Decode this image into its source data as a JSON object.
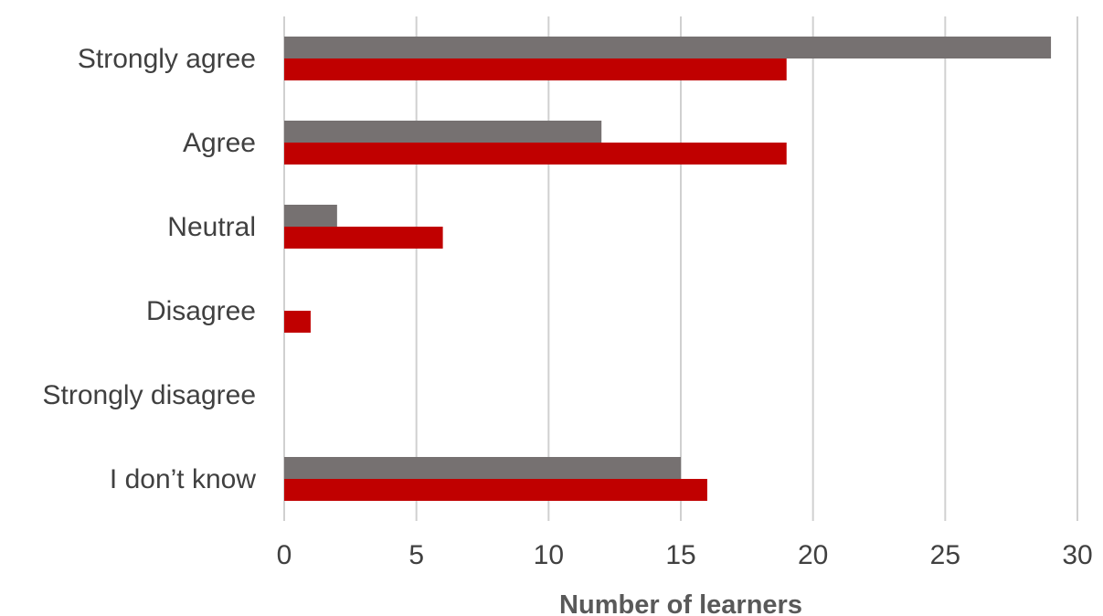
{
  "chart_data": {
    "type": "bar",
    "orientation": "horizontal",
    "categories": [
      "Strongly agree",
      "Agree",
      "Neutral",
      "Disagree",
      "Strongly disagree",
      "I don’t know"
    ],
    "series": [
      {
        "values": [
          29,
          12,
          2,
          0,
          0,
          15
        ],
        "color": "#767171"
      },
      {
        "values": [
          19,
          19,
          6,
          1,
          0,
          16
        ],
        "color": "#c00000"
      }
    ],
    "xlabel": "Number of learners",
    "ylabel": "",
    "xlim": [
      0,
      30
    ],
    "xticks": [
      "0",
      "5",
      "10",
      "15",
      "20",
      "25",
      "30"
    ],
    "grid": "vertical",
    "legend": "none"
  }
}
